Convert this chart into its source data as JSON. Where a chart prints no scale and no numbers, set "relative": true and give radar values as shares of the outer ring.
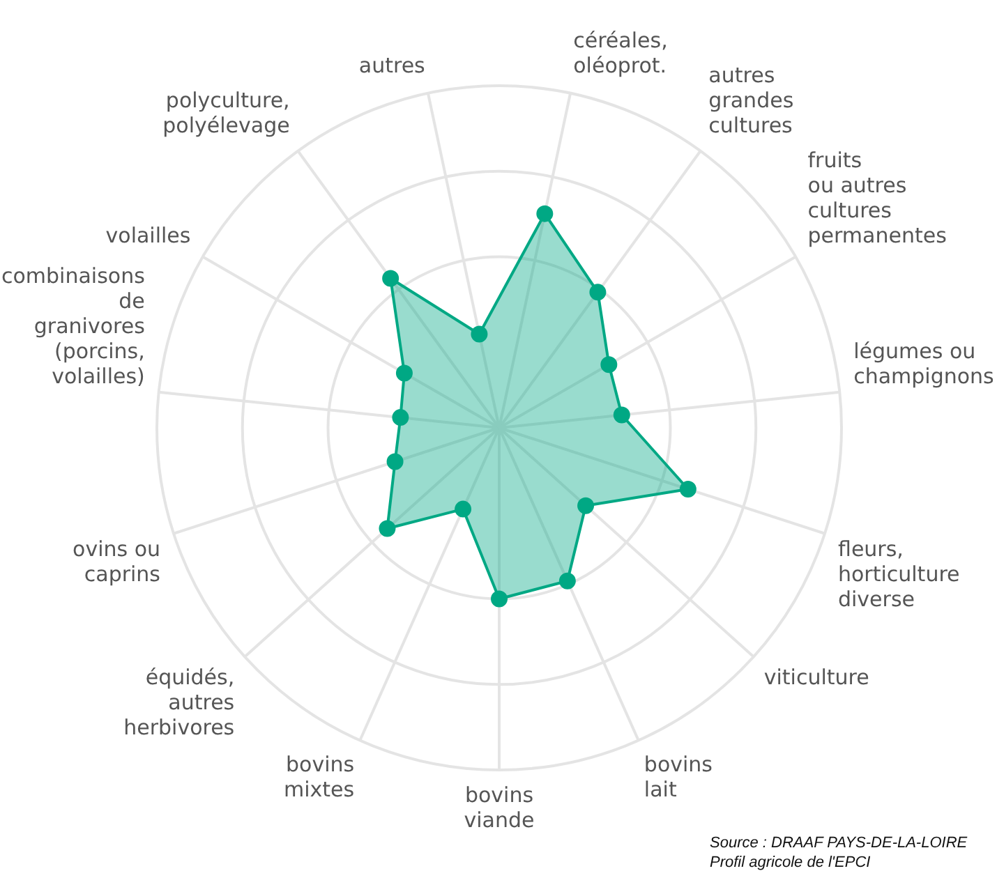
{
  "chart_data": {
    "type": "radar",
    "relative": true,
    "legend": false,
    "marker": "circle",
    "grid": true,
    "categories": [
      "céréales,\noléoprot.",
      "autres\ngrandes\ncultures",
      "fruits\nou autres\ncultures\npermanentes",
      "légumes ou\nchampignons",
      "fleurs,\nhorticulture\ndiverse",
      "viticulture",
      "bovins\nlait",
      "bovins\nviande",
      "bovins\nmixtes",
      "équidés,\nautres\nherbivores",
      "ovins ou\ncaprins",
      "combinaisons\nde\ngranivores\n(porcins,\nvolailles)",
      "volailles",
      "polyculture,\npolyélevage",
      "autres"
    ],
    "series": [
      {
        "color": "#00a884",
        "values": [
          0.64,
          0.49,
          0.37,
          0.36,
          0.58,
          0.34,
          0.49,
          0.5,
          0.26,
          0.44,
          0.32,
          0.29,
          0.32,
          0.54,
          0.28
        ]
      }
    ],
    "annotations": [
      "Source : DRAAF PAYS-DE-LA-LOIRE",
      "Profil agricole de l'EPCI"
    ]
  }
}
